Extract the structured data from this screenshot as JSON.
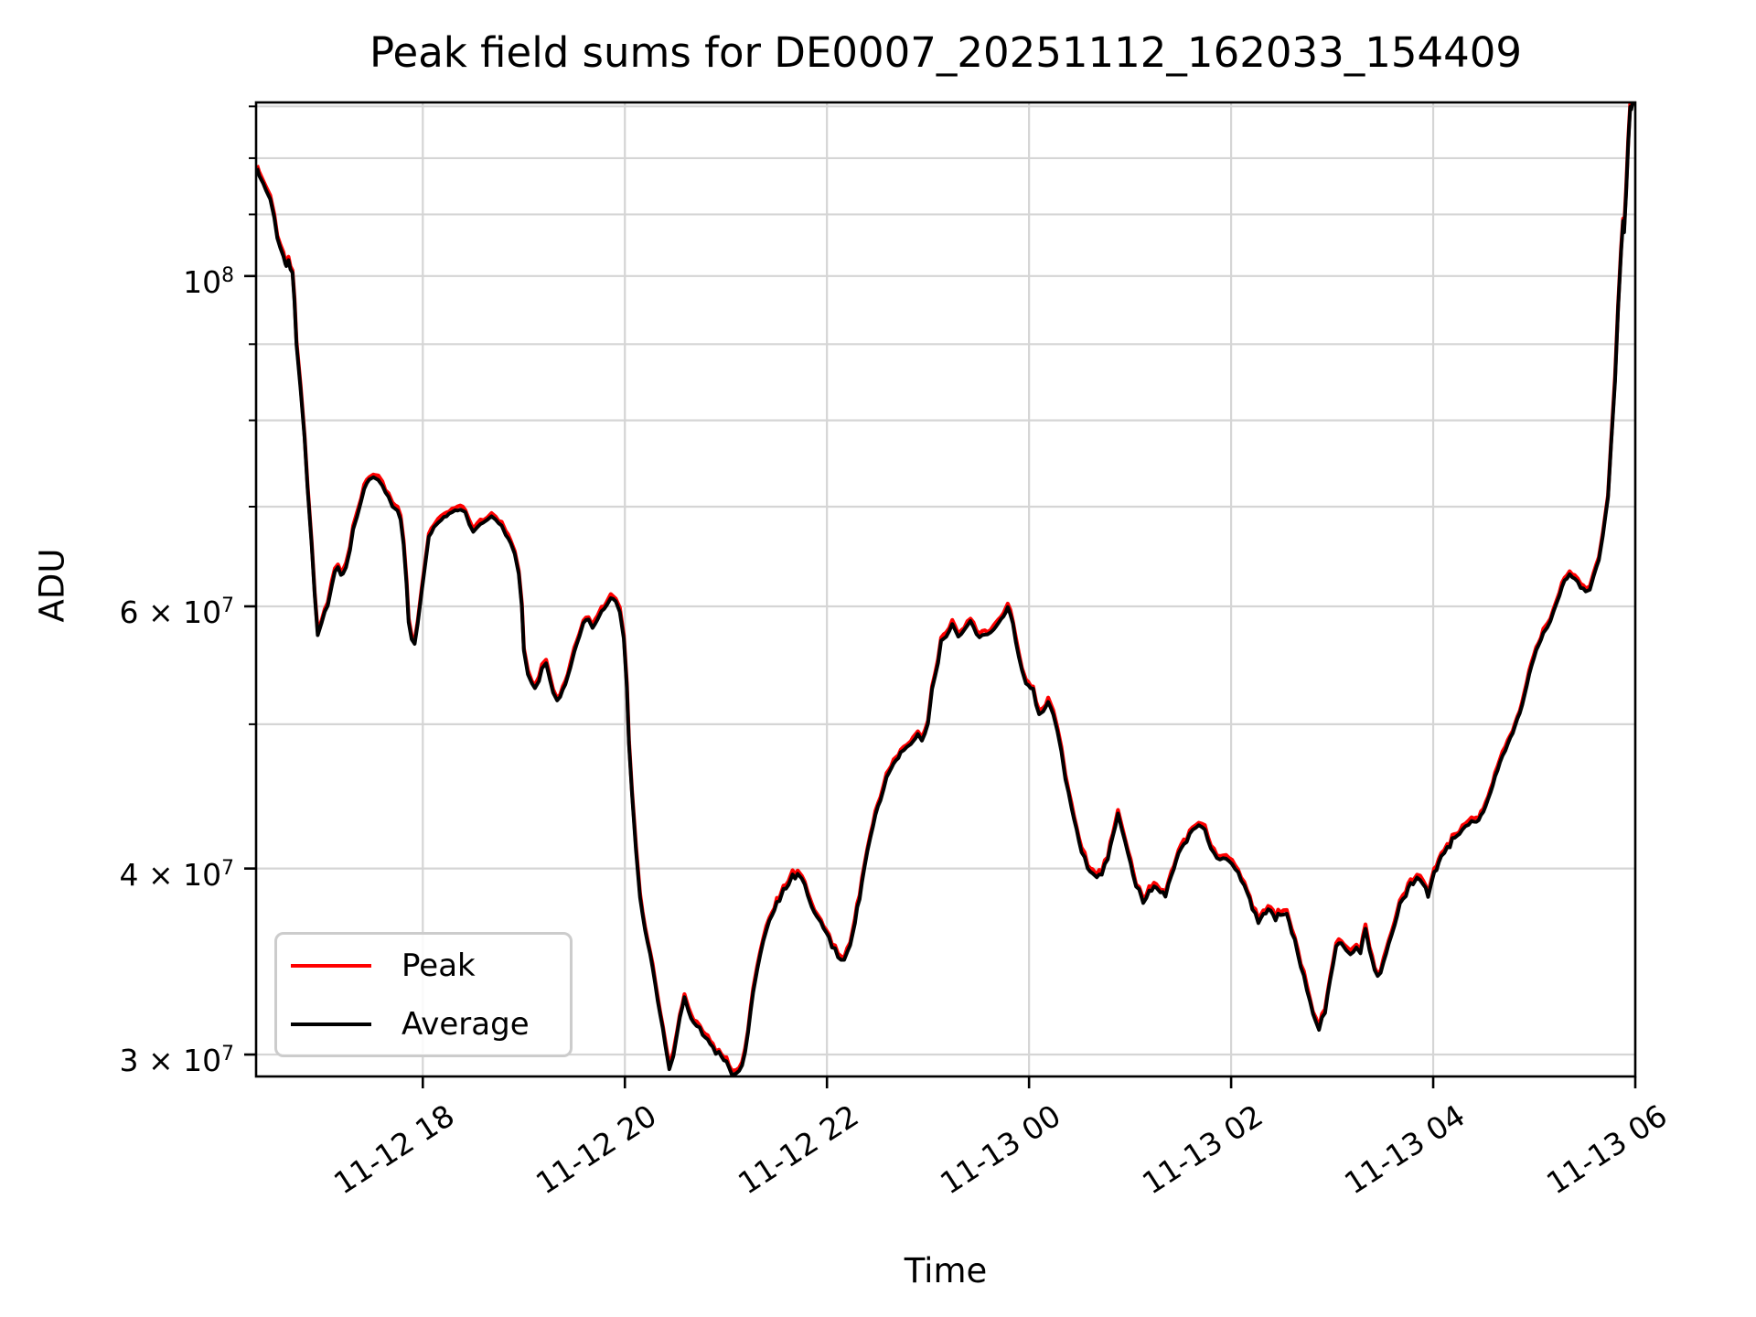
{
  "chart": {
    "title": "Peak field sums for DE0007_20251112_162033_154409",
    "xlabel": "Time",
    "ylabel": "ADU",
    "legend": {
      "entries": [
        {
          "label": "Peak",
          "color": "#ff0000"
        },
        {
          "label": "Average",
          "color": "#000000"
        }
      ]
    }
  },
  "chart_data": {
    "type": "line",
    "title": "Peak field sums for DE0007_20251112_162033_154409",
    "xlabel": "Time",
    "ylabel": "ADU",
    "yscale": "log",
    "grid": "both-major-and-minor-horizontal, major-vertical",
    "legend_position": "lower left",
    "x_unit": "decimal hours since 2025-11-12 00:00",
    "xlim_hours": [
      16.35,
      30.0
    ],
    "ylim_adu": [
      29000000,
      130800000
    ],
    "xticks": [
      {
        "hours": 18,
        "label": "11-12 18"
      },
      {
        "hours": 20,
        "label": "11-12 20"
      },
      {
        "hours": 22,
        "label": "11-12 22"
      },
      {
        "hours": 24,
        "label": "11-13 00"
      },
      {
        "hours": 26,
        "label": "11-13 02"
      },
      {
        "hours": 28,
        "label": "11-13 04"
      },
      {
        "hours": 30,
        "label": "11-13 06"
      }
    ],
    "yticks_major": [
      {
        "value_adu": 100000000,
        "coef": "",
        "exp": "8"
      },
      {
        "value_adu": 60000000,
        "coef": "6 × ",
        "exp": "7"
      },
      {
        "value_adu": 40000000,
        "coef": "4 × ",
        "exp": "7"
      },
      {
        "value_adu": 30000000,
        "coef": "3 × ",
        "exp": "7"
      }
    ],
    "yticks_minor_adu": [
      50000000,
      70000000,
      80000000,
      90000000,
      110000000,
      120000000,
      130000000
    ],
    "grid_values_adu": [
      30000000,
      40000000,
      50000000,
      60000000,
      70000000,
      80000000,
      90000000,
      100000000,
      110000000,
      120000000,
      130000000
    ],
    "points_unit": "ADU × 1e7",
    "series": [
      {
        "name": "Peak",
        "color": "#ff0000",
        "note": "visually coincident with Average, ~0.5-1% higher with noise spikes"
      },
      {
        "name": "Average",
        "color": "#000000"
      }
    ],
    "points_hours_value1e7": [
      [
        16.36,
        11.8
      ],
      [
        16.38,
        11.7
      ],
      [
        16.42,
        11.55
      ],
      [
        16.45,
        11.4
      ],
      [
        16.49,
        11.25
      ],
      [
        16.53,
        10.95
      ],
      [
        16.56,
        10.6
      ],
      [
        16.59,
        10.45
      ],
      [
        16.62,
        10.3
      ],
      [
        16.64,
        10.2
      ],
      [
        16.65,
        10.15
      ],
      [
        16.67,
        10.25
      ],
      [
        16.69,
        10.1
      ],
      [
        16.71,
        10.05
      ],
      [
        16.73,
        9.6
      ],
      [
        16.75,
        9.0
      ],
      [
        16.79,
        8.4
      ],
      [
        16.83,
        7.8
      ],
      [
        16.86,
        7.2
      ],
      [
        16.9,
        6.6
      ],
      [
        16.93,
        6.1
      ],
      [
        16.96,
        5.73
      ],
      [
        17.0,
        5.85
      ],
      [
        17.03,
        5.95
      ],
      [
        17.06,
        6.0
      ],
      [
        17.1,
        6.2
      ],
      [
        17.13,
        6.33
      ],
      [
        17.16,
        6.37
      ],
      [
        17.19,
        6.3
      ],
      [
        17.21,
        6.32
      ],
      [
        17.24,
        6.37
      ],
      [
        17.28,
        6.55
      ],
      [
        17.31,
        6.75
      ],
      [
        17.35,
        6.9
      ],
      [
        17.39,
        7.05
      ],
      [
        17.42,
        7.2
      ],
      [
        17.47,
        7.3
      ],
      [
        17.51,
        7.33
      ],
      [
        17.56,
        7.3
      ],
      [
        17.6,
        7.22
      ],
      [
        17.66,
        7.1
      ],
      [
        17.7,
        7.0
      ],
      [
        17.75,
        6.95
      ],
      [
        17.78,
        6.85
      ],
      [
        17.81,
        6.6
      ],
      [
        17.84,
        6.2
      ],
      [
        17.86,
        5.85
      ],
      [
        17.89,
        5.7
      ],
      [
        17.92,
        5.67
      ],
      [
        17.95,
        5.85
      ],
      [
        17.99,
        6.15
      ],
      [
        18.03,
        6.45
      ],
      [
        18.06,
        6.68
      ],
      [
        18.11,
        6.78
      ],
      [
        18.15,
        6.82
      ],
      [
        18.21,
        6.88
      ],
      [
        18.26,
        6.92
      ],
      [
        18.32,
        6.95
      ],
      [
        18.37,
        6.97
      ],
      [
        18.42,
        6.95
      ],
      [
        18.46,
        6.8
      ],
      [
        18.5,
        6.73
      ],
      [
        18.54,
        6.78
      ],
      [
        18.6,
        6.83
      ],
      [
        18.64,
        6.87
      ],
      [
        18.68,
        6.89
      ],
      [
        18.72,
        6.86
      ],
      [
        18.78,
        6.8
      ],
      [
        18.82,
        6.7
      ],
      [
        18.87,
        6.62
      ],
      [
        18.91,
        6.5
      ],
      [
        18.95,
        6.3
      ],
      [
        18.98,
        6.0
      ],
      [
        19.0,
        5.6
      ],
      [
        19.04,
        5.4
      ],
      [
        19.08,
        5.32
      ],
      [
        19.11,
        5.28
      ],
      [
        19.15,
        5.35
      ],
      [
        19.18,
        5.45
      ],
      [
        19.22,
        5.5
      ],
      [
        19.26,
        5.35
      ],
      [
        19.29,
        5.25
      ],
      [
        19.33,
        5.18
      ],
      [
        19.36,
        5.22
      ],
      [
        19.41,
        5.32
      ],
      [
        19.46,
        5.45
      ],
      [
        19.5,
        5.6
      ],
      [
        19.55,
        5.72
      ],
      [
        19.59,
        5.85
      ],
      [
        19.64,
        5.88
      ],
      [
        19.68,
        5.8
      ],
      [
        19.73,
        5.88
      ],
      [
        19.77,
        5.95
      ],
      [
        19.82,
        6.02
      ],
      [
        19.86,
        6.07
      ],
      [
        19.91,
        6.05
      ],
      [
        19.95,
        5.95
      ],
      [
        19.99,
        5.7
      ],
      [
        20.02,
        5.3
      ],
      [
        20.04,
        4.85
      ],
      [
        20.07,
        4.5
      ],
      [
        20.11,
        4.1
      ],
      [
        20.15,
        3.82
      ],
      [
        20.2,
        3.65
      ],
      [
        20.25,
        3.5
      ],
      [
        20.3,
        3.35
      ],
      [
        20.35,
        3.2
      ],
      [
        20.4,
        3.05
      ],
      [
        20.44,
        2.94
      ],
      [
        20.48,
        3.0
      ],
      [
        20.52,
        3.12
      ],
      [
        20.57,
        3.22
      ],
      [
        20.59,
        3.27
      ],
      [
        20.63,
        3.2
      ],
      [
        20.68,
        3.16
      ],
      [
        20.71,
        3.13
      ],
      [
        20.77,
        3.1
      ],
      [
        20.82,
        3.06
      ],
      [
        20.87,
        3.03
      ],
      [
        20.93,
        3.0
      ],
      [
        20.98,
        2.98
      ],
      [
        21.03,
        2.95
      ],
      [
        21.06,
        2.92
      ],
      [
        21.1,
        2.9
      ],
      [
        21.13,
        2.93
      ],
      [
        21.16,
        2.95
      ],
      [
        21.22,
        3.1
      ],
      [
        21.27,
        3.3
      ],
      [
        21.31,
        3.43
      ],
      [
        21.37,
        3.58
      ],
      [
        21.43,
        3.68
      ],
      [
        21.48,
        3.76
      ],
      [
        21.53,
        3.82
      ],
      [
        21.57,
        3.87
      ],
      [
        21.62,
        3.91
      ],
      [
        21.66,
        3.95
      ],
      [
        21.71,
        3.96
      ],
      [
        21.75,
        3.94
      ],
      [
        21.81,
        3.85
      ],
      [
        21.85,
        3.78
      ],
      [
        21.9,
        3.7
      ],
      [
        21.94,
        3.67
      ],
      [
        21.99,
        3.63
      ],
      [
        22.05,
        3.55
      ],
      [
        22.11,
        3.5
      ],
      [
        22.17,
        3.47
      ],
      [
        22.23,
        3.55
      ],
      [
        22.3,
        3.75
      ],
      [
        22.37,
        4.0
      ],
      [
        22.43,
        4.2
      ],
      [
        22.48,
        4.35
      ],
      [
        22.53,
        4.45
      ],
      [
        22.59,
        4.6
      ],
      [
        22.66,
        4.7
      ],
      [
        22.73,
        4.78
      ],
      [
        22.79,
        4.82
      ],
      [
        22.83,
        4.85
      ],
      [
        22.9,
        4.92
      ],
      [
        22.94,
        4.87
      ],
      [
        23.0,
        5.0
      ],
      [
        23.04,
        5.28
      ],
      [
        23.1,
        5.5
      ],
      [
        23.13,
        5.69
      ],
      [
        23.18,
        5.72
      ],
      [
        23.24,
        5.83
      ],
      [
        23.3,
        5.72
      ],
      [
        23.36,
        5.78
      ],
      [
        23.42,
        5.86
      ],
      [
        23.48,
        5.75
      ],
      [
        23.51,
        5.72
      ],
      [
        23.59,
        5.75
      ],
      [
        23.65,
        5.78
      ],
      [
        23.7,
        5.85
      ],
      [
        23.77,
        5.95
      ],
      [
        23.79,
        6.0
      ],
      [
        23.84,
        5.85
      ],
      [
        23.87,
        5.68
      ],
      [
        23.93,
        5.43
      ],
      [
        23.97,
        5.32
      ],
      [
        24.04,
        5.28
      ],
      [
        24.07,
        5.15
      ],
      [
        24.1,
        5.07
      ],
      [
        24.14,
        5.1
      ],
      [
        24.19,
        5.17
      ],
      [
        24.24,
        5.08
      ],
      [
        24.28,
        4.95
      ],
      [
        24.32,
        4.8
      ],
      [
        24.36,
        4.6
      ],
      [
        24.42,
        4.4
      ],
      [
        24.47,
        4.25
      ],
      [
        24.52,
        4.1
      ],
      [
        24.58,
        4.02
      ],
      [
        24.63,
        3.97
      ],
      [
        24.67,
        3.95
      ],
      [
        24.72,
        3.98
      ],
      [
        24.78,
        4.05
      ],
      [
        24.83,
        4.2
      ],
      [
        24.88,
        4.35
      ],
      [
        24.92,
        4.25
      ],
      [
        24.98,
        4.1
      ],
      [
        25.03,
        3.95
      ],
      [
        25.09,
        3.86
      ],
      [
        25.13,
        3.81
      ],
      [
        25.19,
        3.85
      ],
      [
        25.26,
        3.9
      ],
      [
        25.3,
        3.87
      ],
      [
        25.35,
        3.84
      ],
      [
        25.41,
        3.95
      ],
      [
        25.48,
        4.08
      ],
      [
        25.56,
        4.18
      ],
      [
        25.62,
        4.25
      ],
      [
        25.68,
        4.28
      ],
      [
        25.74,
        4.25
      ],
      [
        25.8,
        4.14
      ],
      [
        25.86,
        4.06
      ],
      [
        25.92,
        4.08
      ],
      [
        25.98,
        4.03
      ],
      [
        26.04,
        4.0
      ],
      [
        26.1,
        3.94
      ],
      [
        26.16,
        3.84
      ],
      [
        26.21,
        3.76
      ],
      [
        26.27,
        3.68
      ],
      [
        26.32,
        3.72
      ],
      [
        26.39,
        3.76
      ],
      [
        26.44,
        3.7
      ],
      [
        26.49,
        3.74
      ],
      [
        26.55,
        3.72
      ],
      [
        26.6,
        3.62
      ],
      [
        26.66,
        3.52
      ],
      [
        26.72,
        3.38
      ],
      [
        26.78,
        3.25
      ],
      [
        26.84,
        3.16
      ],
      [
        26.87,
        3.13
      ],
      [
        26.93,
        3.2
      ],
      [
        26.98,
        3.38
      ],
      [
        27.04,
        3.55
      ],
      [
        27.09,
        3.58
      ],
      [
        27.14,
        3.52
      ],
      [
        27.18,
        3.5
      ],
      [
        27.24,
        3.55
      ],
      [
        27.28,
        3.52
      ],
      [
        27.33,
        3.64
      ],
      [
        27.37,
        3.52
      ],
      [
        27.42,
        3.42
      ],
      [
        27.45,
        3.38
      ],
      [
        27.51,
        3.45
      ],
      [
        27.56,
        3.55
      ],
      [
        27.62,
        3.65
      ],
      [
        27.67,
        3.78
      ],
      [
        27.73,
        3.85
      ],
      [
        27.8,
        3.92
      ],
      [
        27.84,
        3.95
      ],
      [
        27.9,
        3.9
      ],
      [
        27.95,
        3.84
      ],
      [
        28.01,
        3.97
      ],
      [
        28.08,
        4.06
      ],
      [
        28.14,
        4.12
      ],
      [
        28.19,
        4.18
      ],
      [
        28.26,
        4.22
      ],
      [
        28.32,
        4.27
      ],
      [
        28.38,
        4.3
      ],
      [
        28.45,
        4.31
      ],
      [
        28.52,
        4.4
      ],
      [
        28.59,
        4.55
      ],
      [
        28.66,
        4.72
      ],
      [
        28.74,
        4.85
      ],
      [
        28.81,
        4.98
      ],
      [
        28.88,
        5.15
      ],
      [
        28.95,
        5.4
      ],
      [
        29.02,
        5.6
      ],
      [
        29.09,
        5.75
      ],
      [
        29.13,
        5.8
      ],
      [
        29.19,
        5.95
      ],
      [
        29.25,
        6.1
      ],
      [
        29.3,
        6.25
      ],
      [
        29.35,
        6.3
      ],
      [
        29.4,
        6.27
      ],
      [
        29.46,
        6.18
      ],
      [
        29.51,
        6.14
      ],
      [
        29.55,
        6.15
      ],
      [
        29.59,
        6.3
      ],
      [
        29.64,
        6.45
      ],
      [
        29.68,
        6.7
      ],
      [
        29.73,
        7.1
      ],
      [
        29.76,
        7.7
      ],
      [
        29.8,
        8.5
      ],
      [
        29.83,
        9.5
      ],
      [
        29.86,
        10.4
      ],
      [
        29.88,
        10.9
      ],
      [
        29.89,
        10.7
      ],
      [
        29.91,
        11.4
      ],
      [
        29.93,
        12.3
      ],
      [
        29.95,
        13.0
      ],
      [
        29.96,
        12.92
      ],
      [
        29.97,
        13.05
      ],
      [
        29.99,
        13.06
      ]
    ]
  }
}
